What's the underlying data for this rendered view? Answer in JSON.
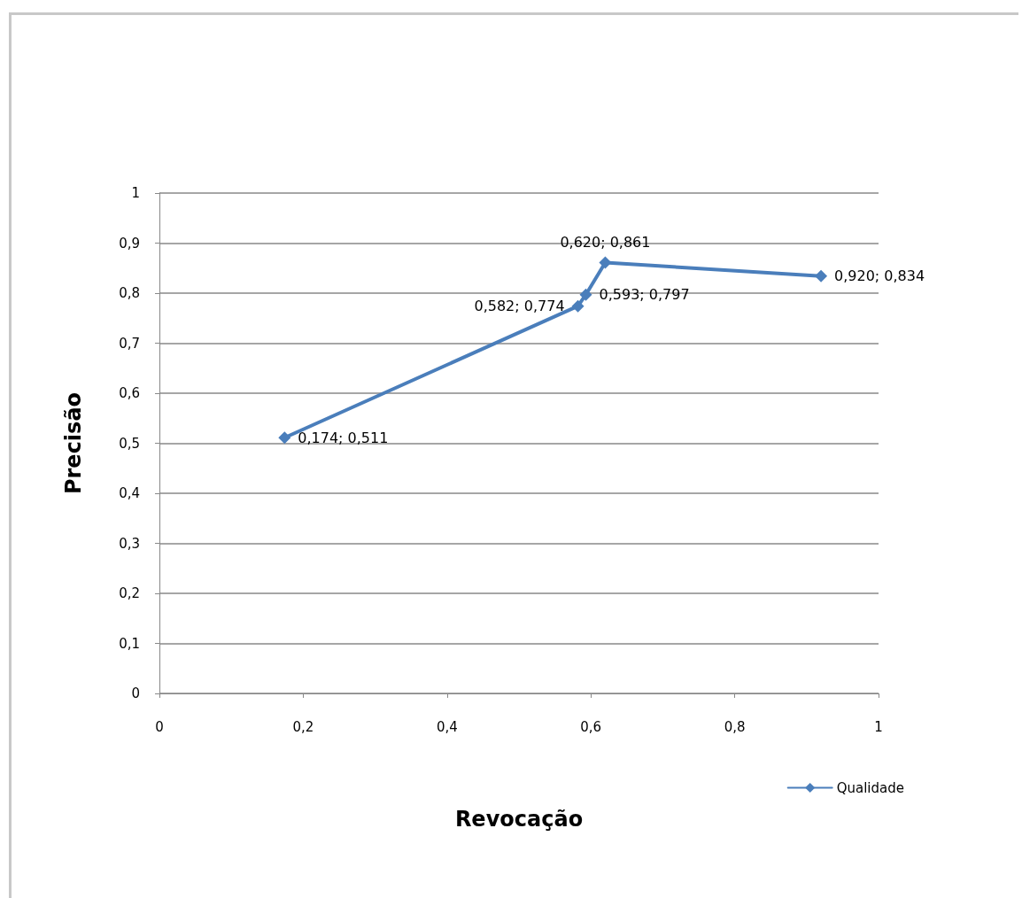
{
  "chart_data": {
    "type": "line",
    "xlabel": "Revocação",
    "ylabel": "Precisão",
    "series": [
      {
        "name": "Qualidade",
        "color": "#4a7ebb",
        "x": [
          0.174,
          0.582,
          0.593,
          0.62,
          0.92
        ],
        "values": [
          0.511,
          0.774,
          0.797,
          0.861,
          0.834
        ],
        "value_labels": [
          "0,174; 0,511",
          "0,582; 0,774",
          "0,593; 0,797",
          "0,620; 0,861",
          "0,920; 0,834"
        ]
      }
    ],
    "xlim": [
      0,
      1
    ],
    "xticks": [
      0,
      {
        "value": 0.2,
        "label": "0,2"
      },
      {
        "value": 0.4,
        "label": "0,4"
      },
      {
        "value": 0.6,
        "label": "0,6"
      },
      {
        "value": 0.8,
        "label": "0,8"
      },
      1
    ],
    "ylim": [
      0,
      1
    ],
    "yticks": [
      0,
      {
        "value": 0.1,
        "label": "0,1"
      },
      {
        "value": 0.2,
        "label": "0,2"
      },
      {
        "value": 0.3,
        "label": "0,3"
      },
      {
        "value": 0.4,
        "label": "0,4"
      },
      {
        "value": 0.5,
        "label": "0,5"
      },
      {
        "value": 0.6,
        "label": "0,6"
      },
      {
        "value": 0.7,
        "label": "0,7"
      },
      {
        "value": 0.8,
        "label": "0,8"
      },
      {
        "value": 0.9,
        "label": "0,9"
      },
      1
    ],
    "grid": "y",
    "legend": "bottom right",
    "marker": "diamond",
    "line_style": "solid"
  }
}
